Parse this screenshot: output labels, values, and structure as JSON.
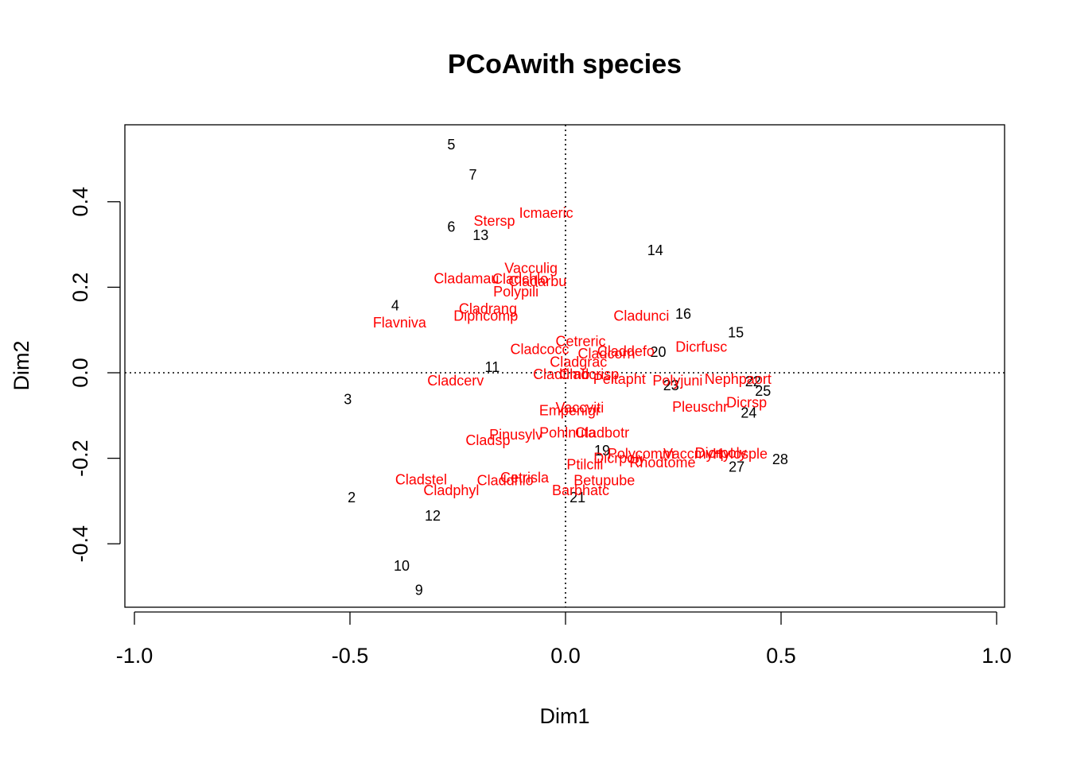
{
  "chart_data": {
    "type": "scatter",
    "title": "PCoAwith species",
    "xlabel": "Dim1",
    "ylabel": "Dim2",
    "xlim": [
      -1.0,
      1.0
    ],
    "ylim": [
      -0.54,
      0.57
    ],
    "xticks": [
      -1.0,
      -0.5,
      0.0,
      0.5,
      1.0
    ],
    "yticks": [
      -0.4,
      -0.2,
      0.0,
      0.2,
      0.4
    ],
    "xtick_labels": [
      "-1.0",
      "-0.5",
      "0.0",
      "0.5",
      "1.0"
    ],
    "ytick_labels": [
      "-0.4",
      "-0.2",
      "0.0",
      "0.2",
      "0.4"
    ],
    "reference_lines": {
      "x": 0,
      "y": 0,
      "style": "dotted"
    },
    "species_color": "#ff0000",
    "site_color": "#000000",
    "sites": [
      {
        "label": "5",
        "x": -0.265,
        "y": 0.533
      },
      {
        "label": "7",
        "x": -0.215,
        "y": 0.463
      },
      {
        "label": "6",
        "x": -0.265,
        "y": 0.341
      },
      {
        "label": "13",
        "x": -0.197,
        "y": 0.322
      },
      {
        "label": "14",
        "x": 0.208,
        "y": 0.286
      },
      {
        "label": "16",
        "x": 0.273,
        "y": 0.138
      },
      {
        "label": "15",
        "x": 0.395,
        "y": 0.094
      },
      {
        "label": "20",
        "x": 0.215,
        "y": 0.048
      },
      {
        "label": "4",
        "x": -0.395,
        "y": 0.157
      },
      {
        "label": "11",
        "x": -0.17,
        "y": 0.013
      },
      {
        "label": "3",
        "x": -0.505,
        "y": -0.062
      },
      {
        "label": "23",
        "x": 0.245,
        "y": -0.03
      },
      {
        "label": "22",
        "x": 0.435,
        "y": -0.02
      },
      {
        "label": "25",
        "x": 0.458,
        "y": -0.043
      },
      {
        "label": "24",
        "x": 0.425,
        "y": -0.094
      },
      {
        "label": "19",
        "x": 0.085,
        "y": -0.182
      },
      {
        "label": "28",
        "x": 0.498,
        "y": -0.203
      },
      {
        "label": "27",
        "x": 0.397,
        "y": -0.22
      },
      {
        "label": "21",
        "x": 0.028,
        "y": -0.292
      },
      {
        "label": "2",
        "x": -0.496,
        "y": -0.292
      },
      {
        "label": "12",
        "x": -0.308,
        "y": -0.335
      },
      {
        "label": "10",
        "x": -0.38,
        "y": -0.452
      },
      {
        "label": "9",
        "x": -0.34,
        "y": -0.508
      }
    ],
    "species": [
      {
        "label": "Icmaeric",
        "x": -0.045,
        "y": 0.374
      },
      {
        "label": "Stersp",
        "x": -0.165,
        "y": 0.355
      },
      {
        "label": "Vacculig",
        "x": -0.08,
        "y": 0.244
      },
      {
        "label": "Cladamau",
        "x": -0.23,
        "y": 0.22
      },
      {
        "label": "Cladchlo",
        "x": -0.105,
        "y": 0.219
      },
      {
        "label": "Cladarbu",
        "x": -0.065,
        "y": 0.214
      },
      {
        "label": "Polypili",
        "x": -0.115,
        "y": 0.19
      },
      {
        "label": "Cladrang",
        "x": -0.18,
        "y": 0.15
      },
      {
        "label": "Diphcomp",
        "x": -0.185,
        "y": 0.133
      },
      {
        "label": "Flavniva",
        "x": -0.385,
        "y": 0.117
      },
      {
        "label": "Cladunci",
        "x": 0.176,
        "y": 0.133
      },
      {
        "label": "Dicrfusc",
        "x": 0.315,
        "y": 0.06
      },
      {
        "label": "Cetreric",
        "x": 0.035,
        "y": 0.073
      },
      {
        "label": "Cladcocc",
        "x": -0.06,
        "y": 0.055
      },
      {
        "label": "Cladcorn",
        "x": 0.095,
        "y": 0.045
      },
      {
        "label": "Claddefo",
        "x": 0.14,
        "y": 0.05
      },
      {
        "label": "Cladgrac",
        "x": 0.03,
        "y": 0.025
      },
      {
        "label": "Cladfimb",
        "x": -0.01,
        "y": -0.004
      },
      {
        "label": "Cladcrisp",
        "x": 0.055,
        "y": -0.004
      },
      {
        "label": "Peltapht",
        "x": 0.125,
        "y": -0.015
      },
      {
        "label": "Polyjuni",
        "x": 0.26,
        "y": -0.019
      },
      {
        "label": "Nephpaort",
        "x": 0.4,
        "y": -0.015
      },
      {
        "label": "Cladcerv",
        "x": -0.255,
        "y": -0.019
      },
      {
        "label": "Dicrsp",
        "x": 0.42,
        "y": -0.07
      },
      {
        "label": "Pleuschr",
        "x": 0.312,
        "y": -0.08
      },
      {
        "label": "Vaccviti",
        "x": 0.033,
        "y": -0.082
      },
      {
        "label": "Empenigr",
        "x": 0.01,
        "y": -0.088
      },
      {
        "label": "Cladbotr",
        "x": 0.085,
        "y": -0.14
      },
      {
        "label": "Pohlnuta",
        "x": 0.005,
        "y": -0.14
      },
      {
        "label": "Pinusylv",
        "x": -0.115,
        "y": -0.145
      },
      {
        "label": "Cladsp",
        "x": -0.18,
        "y": -0.158
      },
      {
        "label": "Polycomm",
        "x": 0.175,
        "y": -0.19
      },
      {
        "label": "Vaccmyrt",
        "x": 0.295,
        "y": -0.19
      },
      {
        "label": "Dicrpoly",
        "x": 0.125,
        "y": -0.2
      },
      {
        "label": "Rhodtome",
        "x": 0.225,
        "y": -0.21
      },
      {
        "label": "Ptilcili",
        "x": 0.045,
        "y": -0.215
      },
      {
        "label": "Hylosple",
        "x": 0.405,
        "y": -0.19
      },
      {
        "label": "Dicrpoly",
        "x": 0.36,
        "y": -0.188
      },
      {
        "label": "Cladstel",
        "x": -0.335,
        "y": -0.25
      },
      {
        "label": "Cetrisla",
        "x": -0.095,
        "y": -0.245
      },
      {
        "label": "Claddhlo",
        "x": -0.14,
        "y": -0.252
      },
      {
        "label": "Betupube",
        "x": 0.09,
        "y": -0.252
      },
      {
        "label": "Cladphyl",
        "x": -0.265,
        "y": -0.275
      },
      {
        "label": "Barbhatc",
        "x": 0.035,
        "y": -0.275
      }
    ]
  }
}
